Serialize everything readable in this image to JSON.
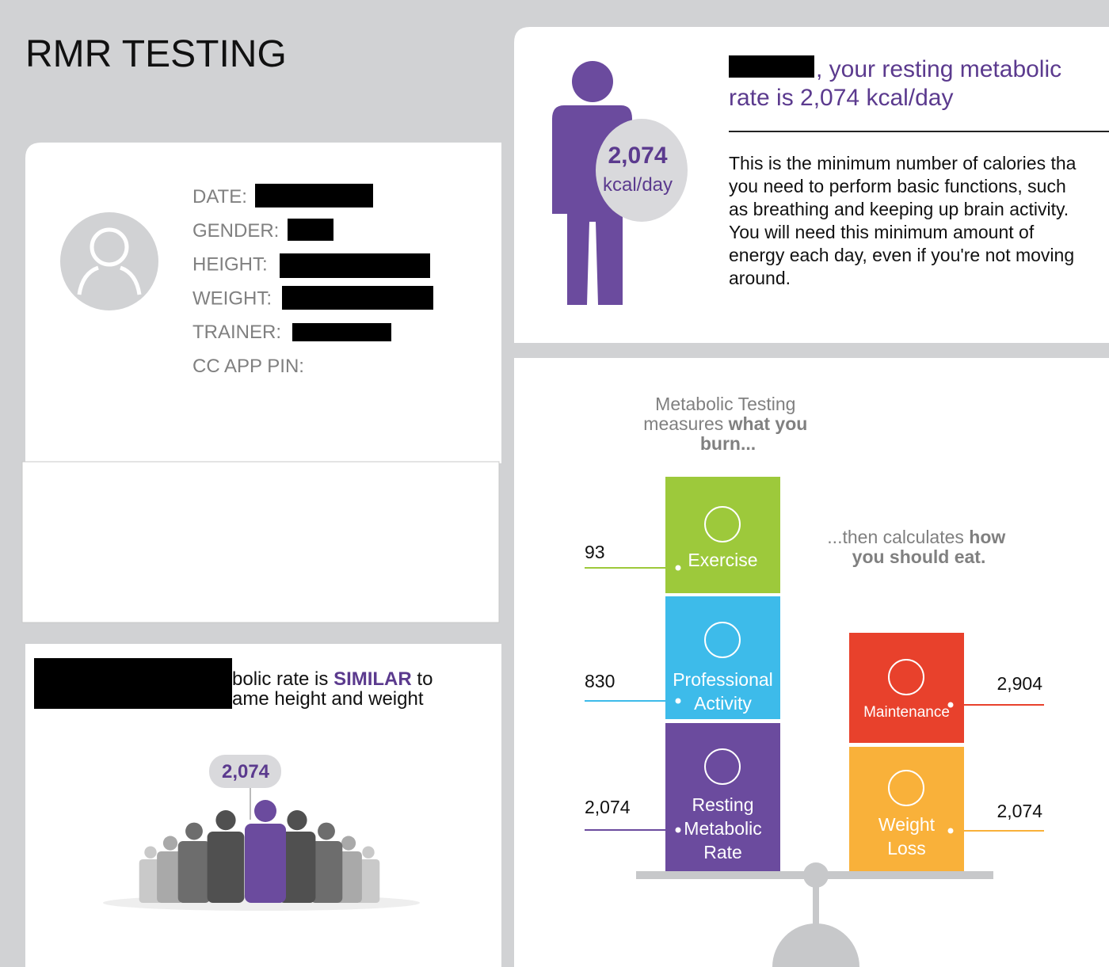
{
  "header": {
    "title": "RMR TESTING"
  },
  "profile": {
    "fields": [
      "DATE:",
      "GENDER:",
      "HEIGHT:",
      "WEIGHT:",
      "TRAINER:",
      "CC APP PIN:"
    ]
  },
  "rmr_card": {
    "headline": [
      ", your resting metabolic",
      "rate is 2,074 kcal/day"
    ],
    "badge_value": "2,074",
    "badge_unit": "kcal/day",
    "description": [
      "This is the minimum number of calories tha",
      "you need to perform basic functions, such",
      "as breathing and keeping up brain activity.",
      "You will need this minimum amount of",
      "energy each day, even if you're not moving",
      "around."
    ]
  },
  "comparison": {
    "line1": [
      "bolic rate is ",
      "SIMILAR",
      " to"
    ],
    "line2": "ame height and weight",
    "badge_value": "2,074"
  },
  "infographic": {
    "intro": [
      "Metabolic Testing",
      "measures ",
      "what you",
      "burn..."
    ],
    "calc": [
      "...then calculates ",
      "how",
      "you should eat."
    ],
    "burn": [
      {
        "label": [
          "Exercise"
        ],
        "value": "93"
      },
      {
        "label": [
          "Professional",
          "Activity"
        ],
        "value": "830"
      },
      {
        "label": [
          "Resting",
          "Metabolic",
          "Rate"
        ],
        "value": "2,074"
      }
    ],
    "eat": [
      {
        "label": [
          "Maintenance"
        ],
        "value": "2,904"
      },
      {
        "label": [
          "Weight",
          "Loss"
        ],
        "value": "2,074"
      }
    ]
  }
}
